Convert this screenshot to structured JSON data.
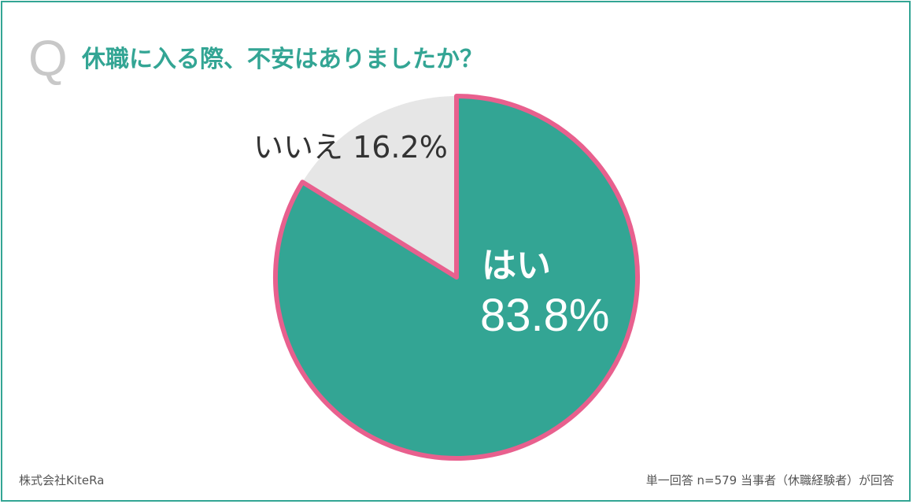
{
  "question_mark": "Q",
  "question": "休職に入る際、不安はありましたか？",
  "footer": {
    "company": "株式会社KiteRa",
    "note": "単一回答 n=579 当事者（休職経験者）が回答"
  },
  "colors": {
    "accent": "#33a594",
    "highlight": "#e8608e",
    "other": "#e6e6e6",
    "q_mark": "#c8c8c8"
  },
  "chart_data": {
    "type": "pie",
    "title": "休職に入る際、不安はありましたか？",
    "start": "12 o'clock, clockwise",
    "slices": [
      {
        "label": "はい",
        "value": 83.8,
        "value_label": "83.8%",
        "color": "#33a594",
        "highlighted": true
      },
      {
        "label": "いいえ",
        "value": 16.2,
        "value_label": "16.2%",
        "color": "#e6e6e6",
        "highlighted": false
      }
    ]
  }
}
